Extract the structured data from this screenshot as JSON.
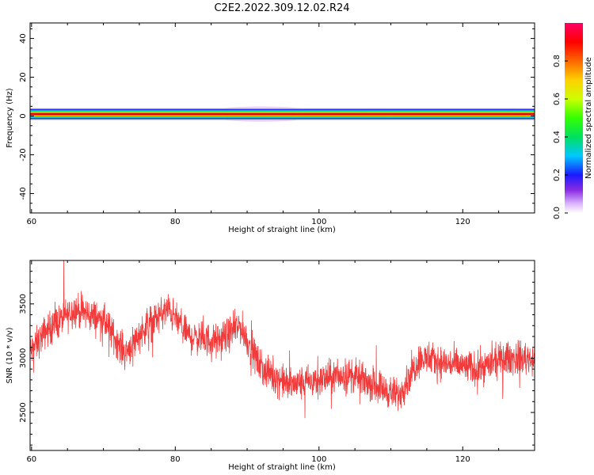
{
  "figure_title": "C2E2.2022.309.12.02.R24",
  "colors": {
    "snr_line": "#f23a3a",
    "axis": "#000000",
    "band_core": "#e60000"
  },
  "chart_data": [
    {
      "type": "heatmap",
      "xlabel": "Height of straight line (km)",
      "ylabel": "Frequency (Hz)",
      "xlim": [
        59.8,
        130
      ],
      "ylim": [
        -50,
        48
      ],
      "xticks": [
        60,
        80,
        100,
        120
      ],
      "yticks": [
        -40,
        -20,
        0,
        20,
        40
      ],
      "colorbar": {
        "label": "Normalized spectral amplitude",
        "range": [
          0,
          1
        ],
        "ticks": [
          0.0,
          0.2,
          0.4,
          0.6,
          0.8
        ]
      },
      "description_of_signal": {
        "band_center_hz": 1,
        "band_halfwidth_hz": 2,
        "broadening_segments": [
          {
            "x_from": 84,
            "x_to": 100,
            "halfwidth_hz": 4
          },
          {
            "x_from": 100,
            "x_to": 116,
            "halfwidth_hz": 3
          },
          {
            "x_from": 124,
            "x_to": 130,
            "halfwidth_hz": 3
          }
        ]
      }
    },
    {
      "type": "line",
      "xlabel": "Height of straight line (km)",
      "ylabel": "SNR (10 * v/v)",
      "xlim": [
        59.8,
        130
      ],
      "ylim": [
        2150,
        3900
      ],
      "xticks": [
        60,
        80,
        100,
        120
      ],
      "yticks": [
        2500,
        3000,
        3500
      ],
      "series": [
        {
          "trend_x": [
            59.8,
            62,
            66,
            70,
            73,
            76,
            79,
            82,
            86,
            89,
            92,
            96,
            100,
            104,
            108,
            111,
            114,
            118,
            122,
            126,
            130
          ],
          "trend_y": [
            3050,
            3250,
            3450,
            3350,
            3050,
            3300,
            3450,
            3200,
            3150,
            3300,
            2900,
            2750,
            2800,
            2850,
            2750,
            2650,
            3000,
            2950,
            2900,
            3000,
            3000
          ],
          "noise_amplitude": 230
        }
      ]
    }
  ]
}
